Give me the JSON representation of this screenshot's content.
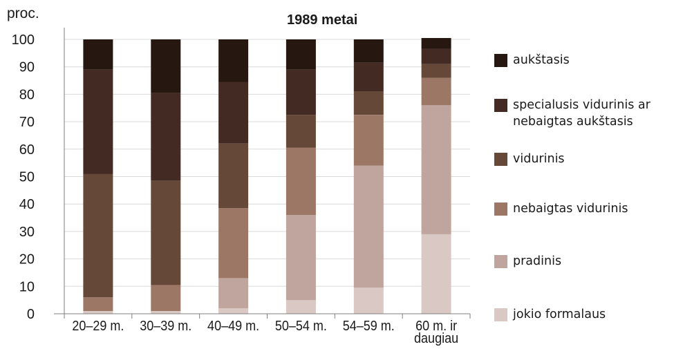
{
  "chart_data": {
    "type": "bar",
    "stacked": true,
    "title": "1989 metai",
    "ylabel": "proc.",
    "xlabel": "",
    "ylim": [
      0,
      100
    ],
    "yticks": [
      0,
      10,
      20,
      30,
      40,
      50,
      60,
      70,
      80,
      90,
      100
    ],
    "grid": true,
    "legend_position": "right",
    "categories": [
      "20–29 m.",
      "30–39 m.",
      "40–49 m.",
      "50–54 m.",
      "54–59 m.",
      "60 m. ir\ndaugiau"
    ],
    "series": [
      {
        "name": "jokio formalaus",
        "color": "#d9c8c4",
        "values": [
          1,
          1,
          2,
          5,
          9.5,
          29
        ]
      },
      {
        "name": "pradinis",
        "color": "#bfa59d",
        "values": [
          0,
          0,
          11,
          31,
          44.5,
          47
        ]
      },
      {
        "name": "nebaigtas vidurinis",
        "color": "#9c7766",
        "values": [
          5,
          9.5,
          25.5,
          24.5,
          18.5,
          10
        ]
      },
      {
        "name": "vidurinis",
        "color": "#664838",
        "values": [
          45,
          38,
          23.5,
          12,
          8.5,
          5
        ]
      },
      {
        "name": "specialusis vidurinis ar\nnebaigtas aukštasis",
        "color": "#432a22",
        "values": [
          38,
          32,
          22.5,
          16.5,
          10.5,
          5.5
        ]
      },
      {
        "name": "aukštasis",
        "color": "#261710",
        "values": [
          11,
          19.5,
          15.5,
          11,
          8.5,
          4
        ]
      }
    ]
  }
}
